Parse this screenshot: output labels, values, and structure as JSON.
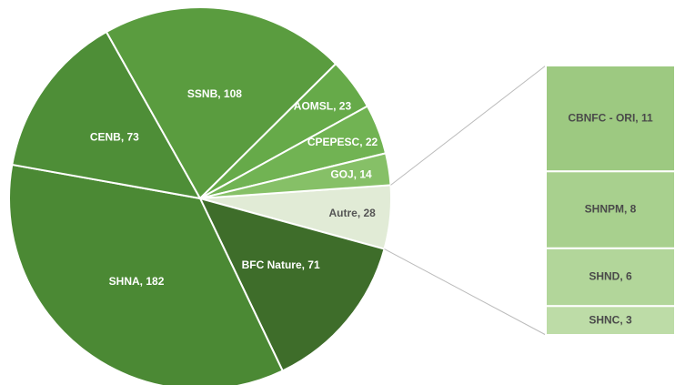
{
  "chart_data": {
    "type": "pie",
    "values": [
      28,
      71,
      182,
      73,
      108,
      23,
      22,
      14
    ],
    "value_labels": [
      "Autre, 28",
      "BFC Nature, 71",
      "SHNA, 182",
      "CENB, 73",
      "SSNB, 108",
      "AOMSL, 23",
      "CPEPESC, 22",
      "GOJ, 14"
    ],
    "colors": [
      "#e1ebd6",
      "#3e6d2a",
      "#4b8934",
      "#4e8e37",
      "#5a9c3f",
      "#66aa49",
      "#71b353",
      "#86c067"
    ],
    "bar": {
      "values": [
        11,
        8,
        6,
        3
      ],
      "value_labels": [
        "CBNFC - ORI, 11",
        "SHNPM, 8",
        "SHND, 6",
        "SHNC, 3"
      ],
      "colors": [
        "#9dc981",
        "#a8d08e",
        "#b2d69a",
        "#bddca7"
      ]
    }
  }
}
